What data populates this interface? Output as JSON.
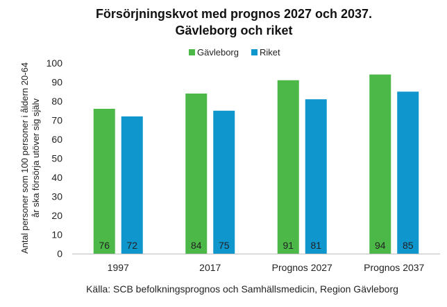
{
  "chart_data": {
    "type": "bar",
    "title_lines": [
      "Försörjningskvot med prognos 2027 och 2037.",
      "Gävleborg och riket"
    ],
    "categories": [
      "1997",
      "2017",
      "Prognos 2027",
      "Prognos 2037"
    ],
    "series": [
      {
        "name": "Gävleborg",
        "values": [
          76,
          84,
          91,
          94
        ],
        "labels": [
          "76",
          "84",
          "91",
          "94"
        ],
        "color": "#4cb848"
      },
      {
        "name": "Riket",
        "values": [
          72,
          75,
          81,
          85
        ],
        "labels": [
          "72",
          "75",
          "81",
          "85"
        ],
        "color": "#0f96cd"
      }
    ],
    "ylabel_lines": [
      "Antal personer som 100 personer i åldern 20-64",
      "år ska försörja utöver sig själv"
    ],
    "xlabel": "",
    "ylim": [
      0,
      100
    ],
    "yticks": [
      0,
      10,
      20,
      30,
      40,
      50,
      60,
      70,
      80,
      90,
      100
    ],
    "ytick_labels": [
      "0",
      "10",
      "20",
      "30",
      "40",
      "50",
      "60",
      "70",
      "80",
      "90",
      "100"
    ],
    "grid": false,
    "legend_position": "top-center",
    "source": "Källa: SCB befolkningsprognos och Samhällsmedicin, Region Gävleborg"
  }
}
